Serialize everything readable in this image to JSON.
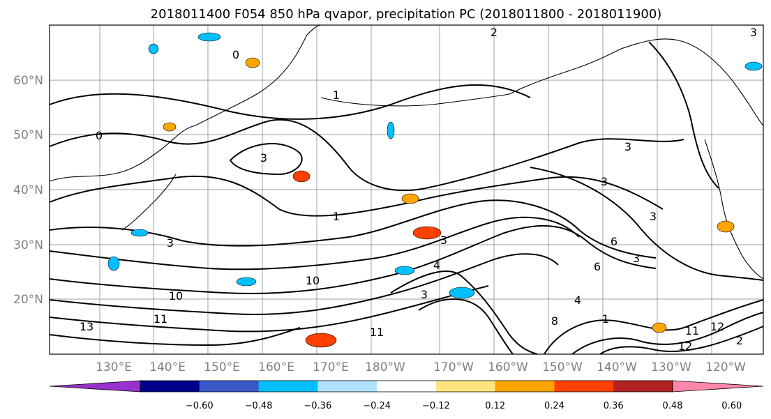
{
  "chart_data": {
    "type": "contour map",
    "title": "2018011400 F054 850 hPa qvapor, precipitation PC (2018011800 - 2018011900)",
    "lon_ticks": [
      "130°E",
      "140°E",
      "150°E",
      "160°E",
      "170°E",
      "180°W",
      "170°W",
      "160°W",
      "150°W",
      "140°W",
      "130°W",
      "120°W"
    ],
    "lat_ticks": [
      "60°N",
      "50°N",
      "40°N",
      "30°N",
      "20°N"
    ],
    "grid": true,
    "colorbar": {
      "levels": [
        "−0.60",
        "−0.48",
        "−0.36",
        "−0.24",
        "−0.12",
        "0.12",
        "0.24",
        "0.36",
        "0.48",
        "0.60"
      ],
      "colors": [
        "#9932cc",
        "#00008b",
        "#3a58c8",
        "#00bfff",
        "#b0e0ff",
        "#ffffff",
        "#ffe680",
        "#ffa500",
        "#ff4000",
        "#b22222",
        "#ff88aa"
      ],
      "extend": "both"
    },
    "contour_labels": [
      "2",
      "0",
      "1",
      "0",
      "3",
      "3",
      "3",
      "3",
      "3",
      "3",
      "1",
      "3",
      "6",
      "6",
      "4",
      "3",
      "4",
      "10",
      "10",
      "13",
      "11",
      "11",
      "12",
      "11",
      "12",
      "8",
      "1",
      "2",
      "3"
    ]
  }
}
